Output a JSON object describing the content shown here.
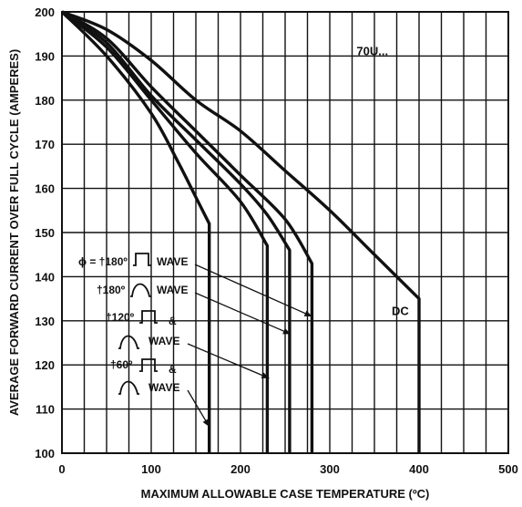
{
  "chart_data": {
    "type": "line",
    "xlabel": "MAXIMUM ALLOWABLE CASE TEMPERATURE (ºC)",
    "ylabel": "AVERAGE FORWARD CURRENT OVER FULL CYCLE (AMPERES)",
    "xlim": [
      0,
      500
    ],
    "ylim": [
      100,
      200
    ],
    "xticks": [
      "0",
      "100",
      "200",
      "300",
      "400",
      "500"
    ],
    "yticks": [
      "100",
      "110",
      "120",
      "130",
      "140",
      "150",
      "160",
      "170",
      "180",
      "190",
      "200"
    ],
    "grid": true,
    "device_label": "70U...",
    "series": [
      {
        "name": "DC",
        "points": [
          [
            0,
            200
          ],
          [
            50,
            196
          ],
          [
            100,
            189
          ],
          [
            150,
            180
          ],
          [
            200,
            173
          ],
          [
            250,
            164
          ],
          [
            300,
            155
          ],
          [
            350,
            145
          ],
          [
            400,
            135
          ]
        ],
        "drop_to": 100
      },
      {
        "name": "ϕ = †180º ⊓ WAVE",
        "points": [
          [
            0,
            200
          ],
          [
            50,
            194
          ],
          [
            100,
            183
          ],
          [
            150,
            173
          ],
          [
            200,
            163
          ],
          [
            250,
            153
          ],
          [
            280,
            143
          ]
        ],
        "drop_to": 100
      },
      {
        "name": "†180º ∩ WAVE",
        "points": [
          [
            0,
            200
          ],
          [
            50,
            193
          ],
          [
            100,
            181
          ],
          [
            150,
            171
          ],
          [
            200,
            161
          ],
          [
            230,
            154
          ],
          [
            255,
            146
          ]
        ],
        "drop_to": 100
      },
      {
        "name": "†120º ⊓ & ∩ WAVE",
        "points": [
          [
            0,
            200
          ],
          [
            50,
            192
          ],
          [
            100,
            180
          ],
          [
            150,
            168
          ],
          [
            200,
            157
          ],
          [
            230,
            147
          ]
        ],
        "drop_to": 100
      },
      {
        "name": "†60º ⊓ & ∩ WAVE",
        "points": [
          [
            0,
            200
          ],
          [
            50,
            190
          ],
          [
            100,
            177
          ],
          [
            130,
            166
          ],
          [
            150,
            158
          ],
          [
            165,
            152
          ]
        ],
        "drop_to": 100
      }
    ],
    "annotations": [
      {
        "text": "DC",
        "target": "DC"
      },
      {
        "lines": [
          "ϕ = †180º",
          "WAVE"
        ],
        "target": [
          280,
          131
        ]
      },
      {
        "lines": [
          "†180º",
          "WAVE"
        ],
        "target": [
          256,
          127
        ]
      },
      {
        "lines": [
          "†120º",
          "&",
          "WAVE"
        ],
        "target": [
          232,
          117
        ]
      },
      {
        "lines": [
          "†60º",
          "&",
          "WAVE"
        ],
        "target": [
          165,
          106
        ]
      }
    ]
  }
}
